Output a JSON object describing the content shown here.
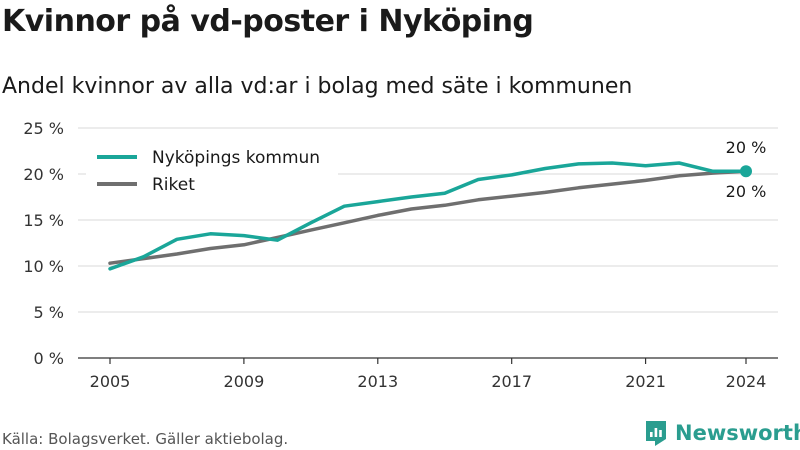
{
  "title": "Kvinnor på vd-poster i Nyköping",
  "subtitle": "Andel kvinnor av alla vd:ar i bolag med säte i kommunen",
  "source": "Källa: Bolagsverket. Gäller aktiebolag.",
  "brand": "Newsworthy",
  "colors": {
    "nykoping": "#1aa699",
    "riket": "#6f6f6f",
    "grid": "#d9d9d9",
    "axis": "#333333"
  },
  "chart_data": {
    "type": "line",
    "x": [
      2005,
      2006,
      2007,
      2008,
      2009,
      2010,
      2011,
      2012,
      2013,
      2014,
      2015,
      2016,
      2017,
      2018,
      2019,
      2020,
      2021,
      2022,
      2023,
      2024
    ],
    "series": [
      {
        "name": "Nyköpings kommun",
        "values": [
          9.7,
          11.0,
          12.9,
          13.5,
          13.3,
          12.8,
          14.7,
          16.5,
          17.0,
          17.5,
          17.9,
          19.4,
          19.9,
          20.6,
          21.1,
          21.2,
          20.9,
          21.2,
          20.3,
          20.3
        ]
      },
      {
        "name": "Riket",
        "values": [
          10.3,
          10.8,
          11.3,
          11.9,
          12.3,
          13.1,
          13.9,
          14.7,
          15.5,
          16.2,
          16.6,
          17.2,
          17.6,
          18.0,
          18.5,
          18.9,
          19.3,
          19.8,
          20.1,
          20.3
        ]
      }
    ],
    "ylim": [
      0,
      25
    ],
    "yticks": [
      0,
      5,
      10,
      15,
      20,
      25
    ],
    "ytick_labels": [
      "0 %",
      "5 %",
      "10 %",
      "15 %",
      "20 %",
      "25 %"
    ],
    "xticks": [
      2005,
      2009,
      2013,
      2017,
      2021,
      2024
    ],
    "xtick_labels": [
      "2005",
      "2009",
      "2013",
      "2017",
      "2021",
      "2024"
    ],
    "end_labels": {
      "nykoping": "20 %",
      "riket": "20 %"
    },
    "legend_position": "top-left",
    "grid": true
  }
}
